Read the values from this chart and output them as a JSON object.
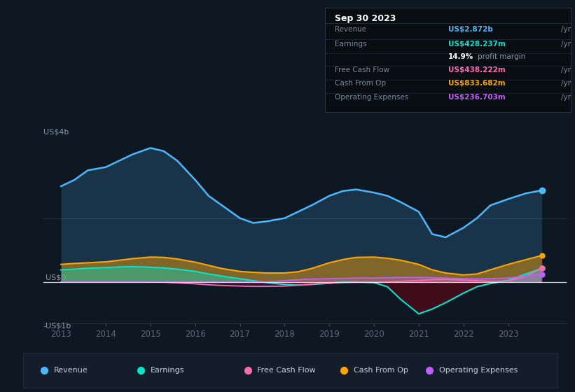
{
  "bg_color": "#0e1822",
  "plot_bg_color": "#0e1822",
  "title_box_bg": "#080d12",
  "title_box_border": "#2a3344",
  "title_date": "Sep 30 2023",
  "title_box_rows": [
    {
      "label": "Revenue",
      "value": "US$2.872b",
      "suffix": " /yr",
      "value_color": "#4db8ff"
    },
    {
      "label": "Earnings",
      "value": "US$428.237m",
      "suffix": " /yr",
      "value_color": "#00e5cc"
    },
    {
      "label": "",
      "value": "14.9%",
      "suffix": " profit margin",
      "value_color": "#ffffff"
    },
    {
      "label": "Free Cash Flow",
      "value": "US$438.222m",
      "suffix": " /yr",
      "value_color": "#ff69b4"
    },
    {
      "label": "Cash From Op",
      "value": "US$833.682m",
      "suffix": " /yr",
      "value_color": "#ffa500"
    },
    {
      "label": "Operating Expenses",
      "value": "US$236.703m",
      "suffix": " /yr",
      "value_color": "#bf5fff"
    }
  ],
  "x_years": [
    2013.0,
    2013.3,
    2013.6,
    2014.0,
    2014.3,
    2014.6,
    2015.0,
    2015.3,
    2015.6,
    2016.0,
    2016.3,
    2016.6,
    2017.0,
    2017.3,
    2017.6,
    2018.0,
    2018.3,
    2018.6,
    2019.0,
    2019.3,
    2019.6,
    2020.0,
    2020.3,
    2020.6,
    2021.0,
    2021.3,
    2021.6,
    2022.0,
    2022.3,
    2022.6,
    2023.0,
    2023.4,
    2023.75
  ],
  "revenue": [
    3.0,
    3.2,
    3.5,
    3.6,
    3.8,
    4.0,
    4.2,
    4.1,
    3.8,
    3.2,
    2.7,
    2.4,
    2.0,
    1.85,
    1.9,
    2.0,
    2.2,
    2.4,
    2.7,
    2.85,
    2.9,
    2.8,
    2.7,
    2.5,
    2.2,
    1.5,
    1.4,
    1.7,
    2.0,
    2.4,
    2.6,
    2.78,
    2.87
  ],
  "earnings": [
    0.38,
    0.4,
    0.43,
    0.45,
    0.47,
    0.48,
    0.46,
    0.44,
    0.4,
    0.33,
    0.25,
    0.18,
    0.1,
    0.04,
    -0.02,
    -0.08,
    -0.1,
    -0.08,
    -0.04,
    0.0,
    0.0,
    -0.02,
    -0.15,
    -0.55,
    -1.0,
    -0.85,
    -0.65,
    -0.35,
    -0.15,
    -0.05,
    0.05,
    0.25,
    0.43
  ],
  "cash_from_op": [
    0.55,
    0.58,
    0.6,
    0.63,
    0.68,
    0.73,
    0.78,
    0.77,
    0.72,
    0.62,
    0.52,
    0.42,
    0.33,
    0.3,
    0.28,
    0.28,
    0.32,
    0.42,
    0.6,
    0.7,
    0.77,
    0.78,
    0.74,
    0.68,
    0.55,
    0.38,
    0.28,
    0.22,
    0.25,
    0.38,
    0.55,
    0.7,
    0.83
  ],
  "free_cash_flow": [
    0.0,
    0.0,
    0.0,
    0.0,
    0.0,
    0.0,
    0.0,
    -0.01,
    -0.03,
    -0.06,
    -0.09,
    -0.11,
    -0.13,
    -0.14,
    -0.14,
    -0.13,
    -0.1,
    -0.07,
    -0.04,
    -0.02,
    -0.01,
    -0.01,
    0.0,
    0.02,
    0.05,
    0.07,
    0.08,
    0.06,
    0.04,
    0.02,
    0.03,
    0.18,
    0.44
  ],
  "op_expenses": [
    0.0,
    0.0,
    0.0,
    0.0,
    0.0,
    0.0,
    0.0,
    0.0,
    0.0,
    0.0,
    0.0,
    0.0,
    0.0,
    0.0,
    0.0,
    0.04,
    0.07,
    0.09,
    0.1,
    0.11,
    0.12,
    0.12,
    0.13,
    0.14,
    0.14,
    0.13,
    0.12,
    0.1,
    0.09,
    0.1,
    0.12,
    0.18,
    0.24
  ],
  "ylim": [
    -1.3,
    4.6
  ],
  "y_label_4b": 4.0,
  "y_label_0": 0.0,
  "y_label_neg1b": -1.0,
  "xtick_years": [
    2013,
    2014,
    2015,
    2016,
    2017,
    2018,
    2019,
    2020,
    2021,
    2022,
    2023
  ],
  "colors": {
    "revenue": "#4db8ff",
    "earnings_pos": "#00e5cc",
    "earnings_neg": "#4a0a18",
    "cash_from_op": "#ffa500",
    "free_cash_flow": "#ff69b4",
    "op_expenses": "#bf5fff"
  },
  "legend_items": [
    {
      "label": "Revenue",
      "color": "#4db8ff"
    },
    {
      "label": "Earnings",
      "color": "#00e5cc"
    },
    {
      "label": "Free Cash Flow",
      "color": "#ff69b4"
    },
    {
      "label": "Cash From Op",
      "color": "#ffa500"
    },
    {
      "label": "Operating Expenses",
      "color": "#bf5fff"
    }
  ]
}
